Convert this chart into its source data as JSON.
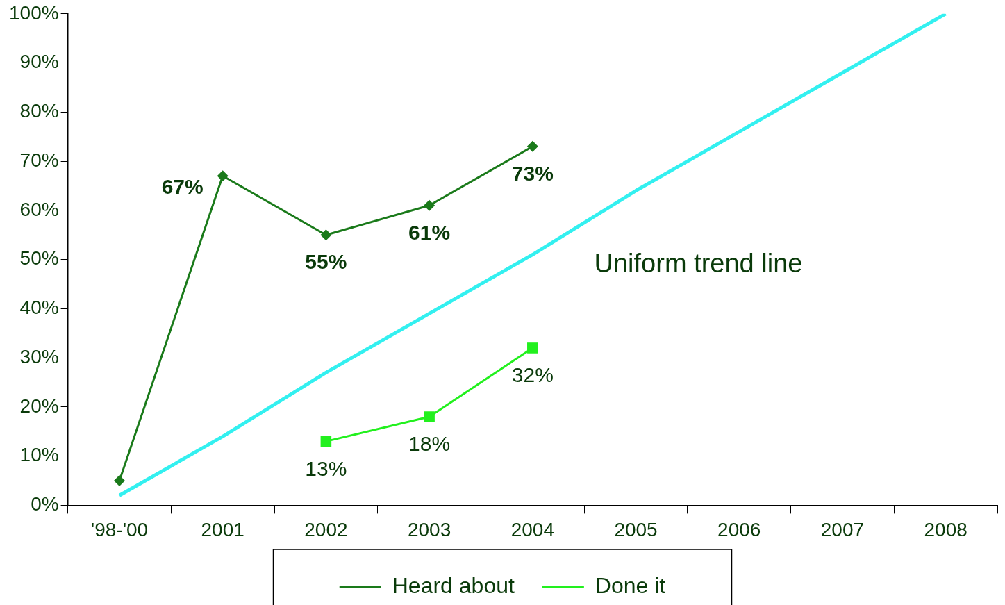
{
  "chart_data": {
    "type": "line",
    "categories": [
      "'98-'00",
      "2001",
      "2002",
      "2003",
      "2004",
      "2005",
      "2006",
      "2007",
      "2008"
    ],
    "series": [
      {
        "name": "Heard about",
        "color": "#1a7a1a",
        "values": [
          5,
          67,
          55,
          61,
          73,
          null,
          null,
          null,
          null
        ],
        "marker": "diamond",
        "value_labels": [
          null,
          "67%",
          "55%",
          "61%",
          "73%",
          null,
          null,
          null,
          null
        ]
      },
      {
        "name": "Done it",
        "color": "#22f01e",
        "values": [
          null,
          null,
          13,
          18,
          32,
          null,
          null,
          null,
          null
        ],
        "marker": "square",
        "value_labels": [
          null,
          null,
          "13%",
          "18%",
          "32%",
          null,
          null,
          null,
          null
        ]
      },
      {
        "name": "Uniform trend line",
        "color": "#33f0f0",
        "values": [
          2,
          14,
          27,
          39,
          51,
          64,
          76,
          88,
          100
        ],
        "marker": "none"
      }
    ],
    "ylim": [
      0,
      100
    ],
    "yticks": [
      {
        "value": 0,
        "label": "0%"
      },
      {
        "value": 10,
        "label": "10%"
      },
      {
        "value": 20,
        "label": "20%"
      },
      {
        "value": 30,
        "label": "30%"
      },
      {
        "value": 40,
        "label": "40%"
      },
      {
        "value": 50,
        "label": "50%"
      },
      {
        "value": 60,
        "label": "60%"
      },
      {
        "value": 70,
        "label": "70%"
      },
      {
        "value": 80,
        "label": "80%"
      },
      {
        "value": 90,
        "label": "90%"
      },
      {
        "value": 100,
        "label": "100%"
      }
    ],
    "grid": false,
    "legend": "bottom",
    "line_style": "solid"
  }
}
